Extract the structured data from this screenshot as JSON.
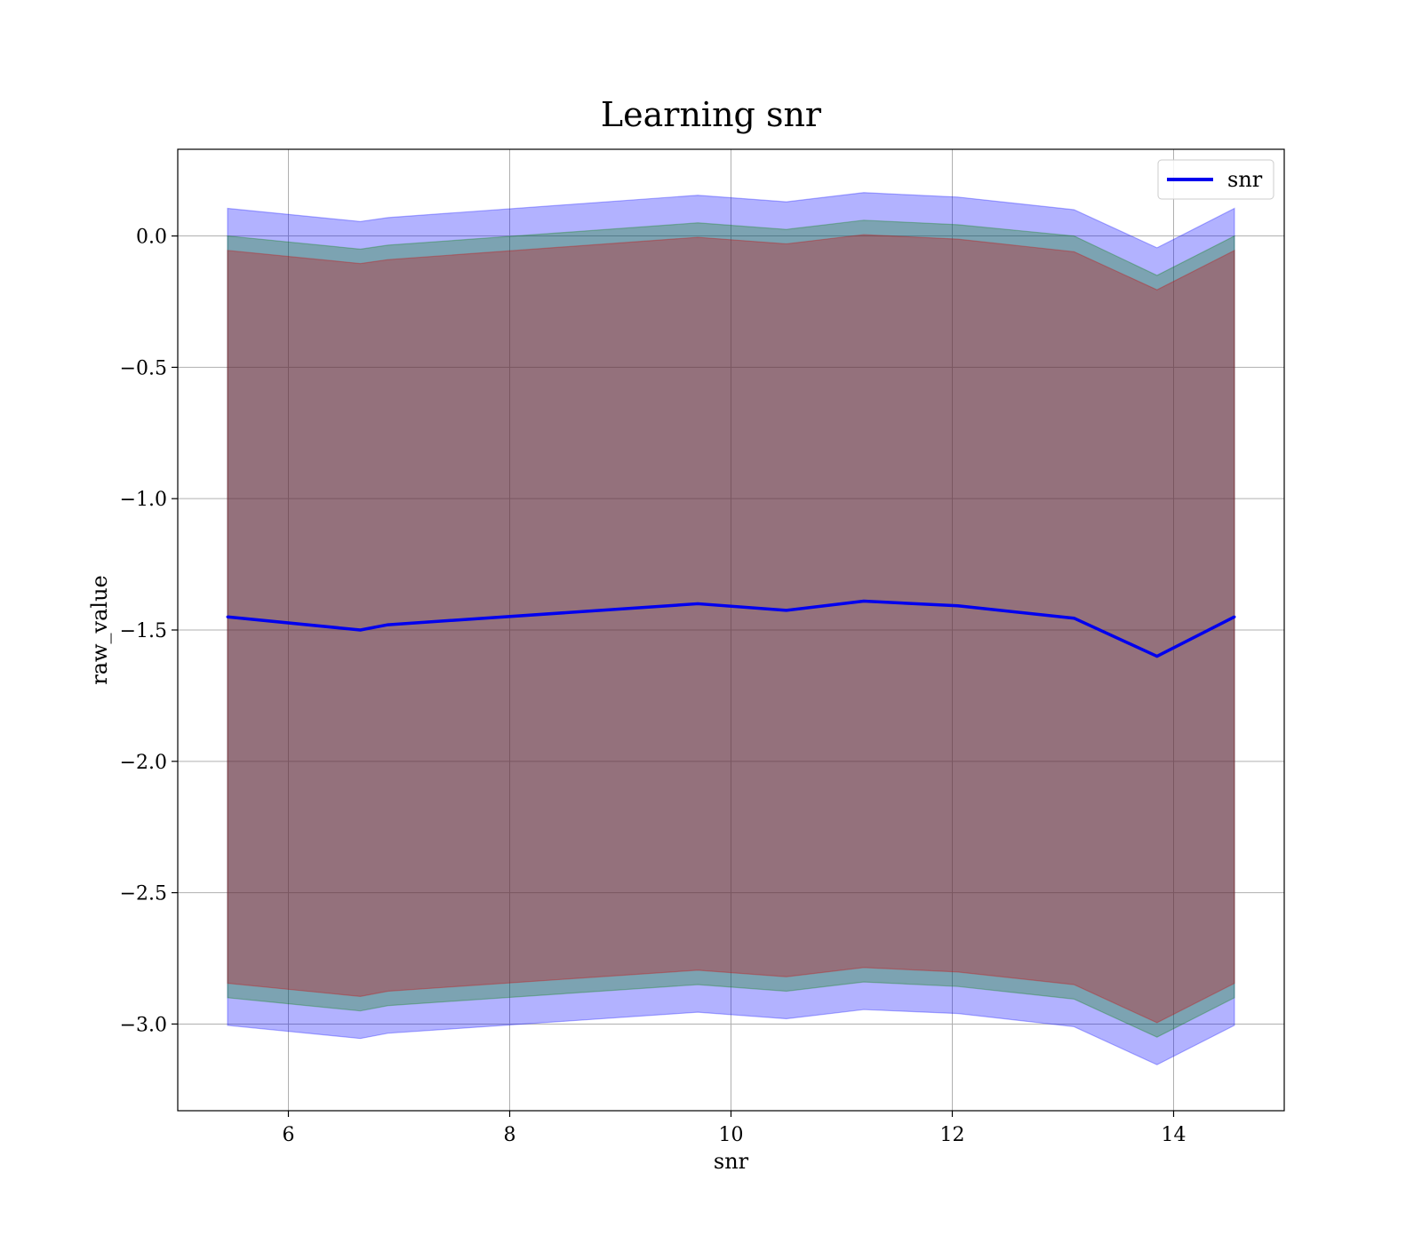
{
  "chart_data": {
    "type": "line",
    "title": "Learning snr",
    "xlabel": "snr",
    "ylabel": "raw_value",
    "xlim": [
      5.0,
      15.0
    ],
    "ylim": [
      -3.33,
      0.33
    ],
    "xticks": [
      6,
      8,
      10,
      12,
      14
    ],
    "xtick_labels": [
      "6",
      "8",
      "10",
      "12",
      "14"
    ],
    "yticks": [
      0.0,
      -0.5,
      -1.0,
      -1.5,
      -2.0,
      -2.5,
      -3.0
    ],
    "ytick_labels": [
      "0.0",
      "−0.5",
      "−1.0",
      "−1.5",
      "−2.0",
      "−2.5",
      "−3.0"
    ],
    "grid": true,
    "legend_position": "top-right",
    "x": [
      5.45,
      6.65,
      6.9,
      9.7,
      10.5,
      11.2,
      12.05,
      13.1,
      13.85,
      14.55
    ],
    "series": [
      {
        "name": "snr",
        "color": "#0000ee",
        "values": [
          -1.45,
          -1.5,
          -1.48,
          -1.4,
          -1.425,
          -1.39,
          -1.408,
          -1.455,
          -1.6,
          -1.45
        ]
      }
    ],
    "bands": [
      {
        "color": "#0000ff",
        "opacity": 0.3,
        "upper": [
          0.105,
          0.055,
          0.07,
          0.155,
          0.13,
          0.165,
          0.148,
          0.1,
          -0.045,
          0.105
        ],
        "lower": [
          -3.005,
          -3.055,
          -3.035,
          -2.955,
          -2.98,
          -2.945,
          -2.96,
          -3.01,
          -3.155,
          -3.005
        ]
      },
      {
        "color": "#008000",
        "opacity": 0.3,
        "upper": [
          0.0,
          -0.05,
          -0.035,
          0.05,
          0.025,
          0.06,
          0.043,
          0.0,
          -0.15,
          0.0
        ],
        "lower": [
          -2.9,
          -2.95,
          -2.93,
          -2.85,
          -2.875,
          -2.84,
          -2.857,
          -2.905,
          -3.05,
          -2.9
        ]
      },
      {
        "color": "#cc0000",
        "opacity": 0.3,
        "upper": [
          -0.055,
          -0.105,
          -0.09,
          -0.005,
          -0.03,
          0.005,
          -0.012,
          -0.06,
          -0.205,
          -0.055
        ],
        "lower": [
          -2.845,
          -2.895,
          -2.875,
          -2.795,
          -2.82,
          -2.785,
          -2.802,
          -2.85,
          -2.995,
          -2.845
        ]
      }
    ]
  }
}
